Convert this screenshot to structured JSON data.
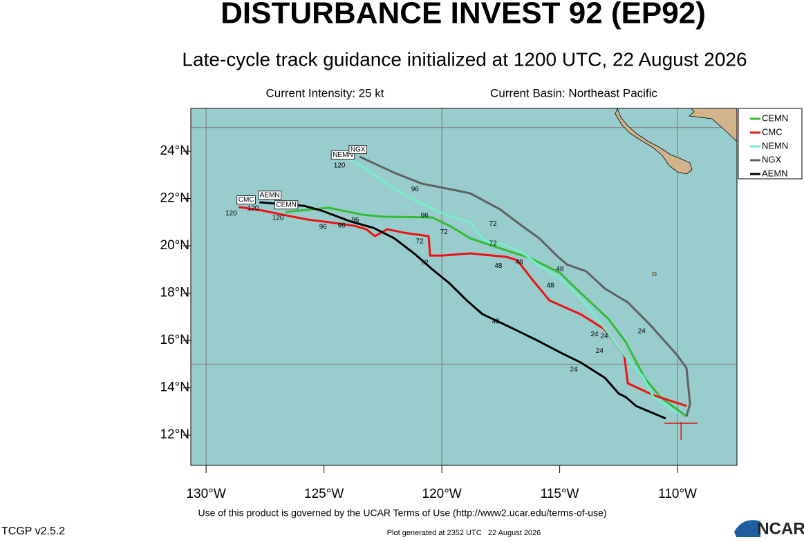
{
  "chart_data": {
    "type": "track",
    "title": "DISTURBANCE INVEST 92 (EP92)",
    "subtitle": "Late-cycle track guidance initialized at 1200 UTC, 22 August 2026",
    "intensity_text": "Current Intensity: 25 kt",
    "basin_text": "Current Basin: Northeast Pacific",
    "terms_text": "Use of this product is governed by the UCAR Terms of Use (http://www2.ucar.edu/terms-of-use)",
    "version_text": "TCGP v2.5.2",
    "generated_text": "Plot generated at 2352 UTC   22 August 2026",
    "logo_text": "NCAR",
    "xlim": [
      -130.65,
      -107.48
    ],
    "ylim": [
      10.72,
      25.81
    ],
    "xticks": [
      {
        "value": -130,
        "label": "130°W"
      },
      {
        "value": -125,
        "label": "125°W"
      },
      {
        "value": -120,
        "label": "120°W"
      },
      {
        "value": -115,
        "label": "115°W"
      },
      {
        "value": -110,
        "label": "110°W"
      }
    ],
    "yticks": [
      {
        "value": 12,
        "label": "12°N"
      },
      {
        "value": 14,
        "label": "14°N"
      },
      {
        "value": 16,
        "label": "16°N"
      },
      {
        "value": 18,
        "label": "18°N"
      },
      {
        "value": 20,
        "label": "20°N"
      },
      {
        "value": 22,
        "label": "22°N"
      },
      {
        "value": 24,
        "label": "24°N"
      }
    ],
    "grid_lon": [
      -130,
      -120,
      -110
    ],
    "grid_lat": [
      15,
      25
    ],
    "water_color": "#99cccc",
    "current_position": {
      "lon": -109.85,
      "lat": 12.5,
      "color": "#e01010"
    },
    "series": [
      {
        "name": "CEMN",
        "color": "#33bb33",
        "x": [
          -109.62,
          -110.73,
          -111.38,
          -112.2,
          -112.93,
          -114.4,
          -114.99,
          -116.3,
          -117.77,
          -118.8,
          -119.62,
          -120.41,
          -122.46,
          -123.34,
          -124.81,
          -126.63
        ],
        "values": [
          12.79,
          13.61,
          14.39,
          15.94,
          16.91,
          18.28,
          18.86,
          19.5,
          19.97,
          20.32,
          20.82,
          21.2,
          21.23,
          21.31,
          21.61,
          21.43
        ]
      },
      {
        "name": "CMC",
        "color": "#ee1111",
        "x": [
          -109.62,
          -111.03,
          -112.11,
          -112.26,
          -112.79,
          -113.14,
          -114.11,
          -115.43,
          -116.16,
          -116.8,
          -117.24,
          -118.8,
          -119.97,
          -120.5,
          -120.56,
          -121.58,
          -122.32,
          -122.84,
          -123.2,
          -123.72,
          -124.72,
          -125.69,
          -126.57,
          -127.6,
          -128.62
        ],
        "values": [
          13.23,
          13.69,
          14.19,
          15.36,
          16.09,
          16.5,
          17.11,
          17.69,
          18.57,
          19.39,
          19.53,
          19.68,
          19.59,
          19.59,
          20.41,
          20.55,
          20.7,
          20.41,
          20.7,
          20.85,
          20.99,
          21.11,
          21.28,
          21.49,
          21.64
        ]
      },
      {
        "name": "NEMN",
        "color": "#77eec8",
        "x": [
          -110.0,
          -111.03,
          -111.47,
          -112.35,
          -112.99,
          -113.67,
          -114.46,
          -115.13,
          -115.87,
          -116.6,
          -117.33,
          -118.21,
          -118.8,
          -119.68,
          -120.56,
          -121.29,
          -122.17,
          -123.2,
          -124.08
        ],
        "values": [
          12.93,
          13.61,
          14.48,
          15.5,
          16.38,
          17.26,
          18.13,
          18.72,
          19.15,
          19.74,
          20.03,
          20.23,
          20.99,
          21.26,
          21.64,
          21.99,
          22.51,
          23.24,
          23.74
        ]
      },
      {
        "name": "NGX",
        "color": "#606060",
        "x": [
          -109.62,
          -109.47,
          -109.62,
          -110.0,
          -111.17,
          -112.11,
          -113.08,
          -113.87,
          -114.69,
          -115.13,
          -115.87,
          -116.69,
          -117.54,
          -118.8,
          -119.38,
          -120.85,
          -122.02,
          -123.49
        ],
        "values": [
          12.79,
          13.31,
          14.83,
          15.36,
          16.67,
          17.61,
          18.19,
          18.92,
          19.21,
          19.59,
          20.32,
          20.91,
          21.55,
          22.22,
          22.34,
          22.63,
          23.09,
          23.77
        ]
      },
      {
        "name": "AEMN",
        "color": "#000000",
        "x": [
          -110.5,
          -111.76,
          -112.2,
          -112.49,
          -113.08,
          -114.11,
          -114.99,
          -116.01,
          -117.04,
          -118.27,
          -118.94,
          -119.68,
          -120.41,
          -121.14,
          -122.02,
          -122.9,
          -123.93,
          -125.1,
          -125.84,
          -127.74
        ],
        "values": [
          12.7,
          13.23,
          13.61,
          13.75,
          14.42,
          15.07,
          15.5,
          16.03,
          16.53,
          17.11,
          17.69,
          18.42,
          19.01,
          19.65,
          20.32,
          20.76,
          21.05,
          21.49,
          21.69,
          21.84
        ]
      }
    ],
    "model_labels": [
      {
        "series": 1,
        "lon": -128.3,
        "lat": 21.94
      },
      {
        "series": 4,
        "lon": -127.3,
        "lat": 22.14
      },
      {
        "series": 0,
        "lon": -126.6,
        "lat": 21.73
      },
      {
        "series": 2,
        "lon": -124.2,
        "lat": 23.84
      },
      {
        "series": 3,
        "lon": -123.56,
        "lat": 24.07
      }
    ],
    "annotations": [
      {
        "text": "24",
        "lon": -111.52,
        "lat": 16.38
      },
      {
        "text": "24",
        "lon": -113.52,
        "lat": 16.26
      },
      {
        "text": "24",
        "lon": -113.11,
        "lat": 16.18
      },
      {
        "text": "24",
        "lon": -113.31,
        "lat": 15.56
      },
      {
        "text": "24",
        "lon": -114.4,
        "lat": 14.77
      },
      {
        "text": "48",
        "lon": -114.99,
        "lat": 19.01
      },
      {
        "text": "48",
        "lon": -115.4,
        "lat": 18.31
      },
      {
        "text": "48",
        "lon": -116.72,
        "lat": 19.3
      },
      {
        "text": "48",
        "lon": -117.6,
        "lat": 19.15
      },
      {
        "text": "48",
        "lon": -117.71,
        "lat": 16.79
      },
      {
        "text": "72",
        "lon": -117.83,
        "lat": 20.93
      },
      {
        "text": "72",
        "lon": -117.83,
        "lat": 20.09
      },
      {
        "text": "72",
        "lon": -119.91,
        "lat": 20.58
      },
      {
        "text": "72",
        "lon": -120.94,
        "lat": 20.18
      },
      {
        "text": "72",
        "lon": -120.73,
        "lat": 19.27
      },
      {
        "text": "96",
        "lon": -121.14,
        "lat": 22.39
      },
      {
        "text": "96",
        "lon": -120.73,
        "lat": 21.28
      },
      {
        "text": "96",
        "lon": -123.67,
        "lat": 21.08
      },
      {
        "text": "96",
        "lon": -124.25,
        "lat": 20.85
      },
      {
        "text": "96",
        "lon": -125.04,
        "lat": 20.79
      },
      {
        "text": "120",
        "lon": -124.34,
        "lat": 23.39
      },
      {
        "text": "120",
        "lon": -128.01,
        "lat": 21.58
      },
      {
        "text": "120",
        "lon": -128.94,
        "lat": 21.37
      },
      {
        "text": "120",
        "lon": -126.95,
        "lat": 21.17
      }
    ]
  }
}
